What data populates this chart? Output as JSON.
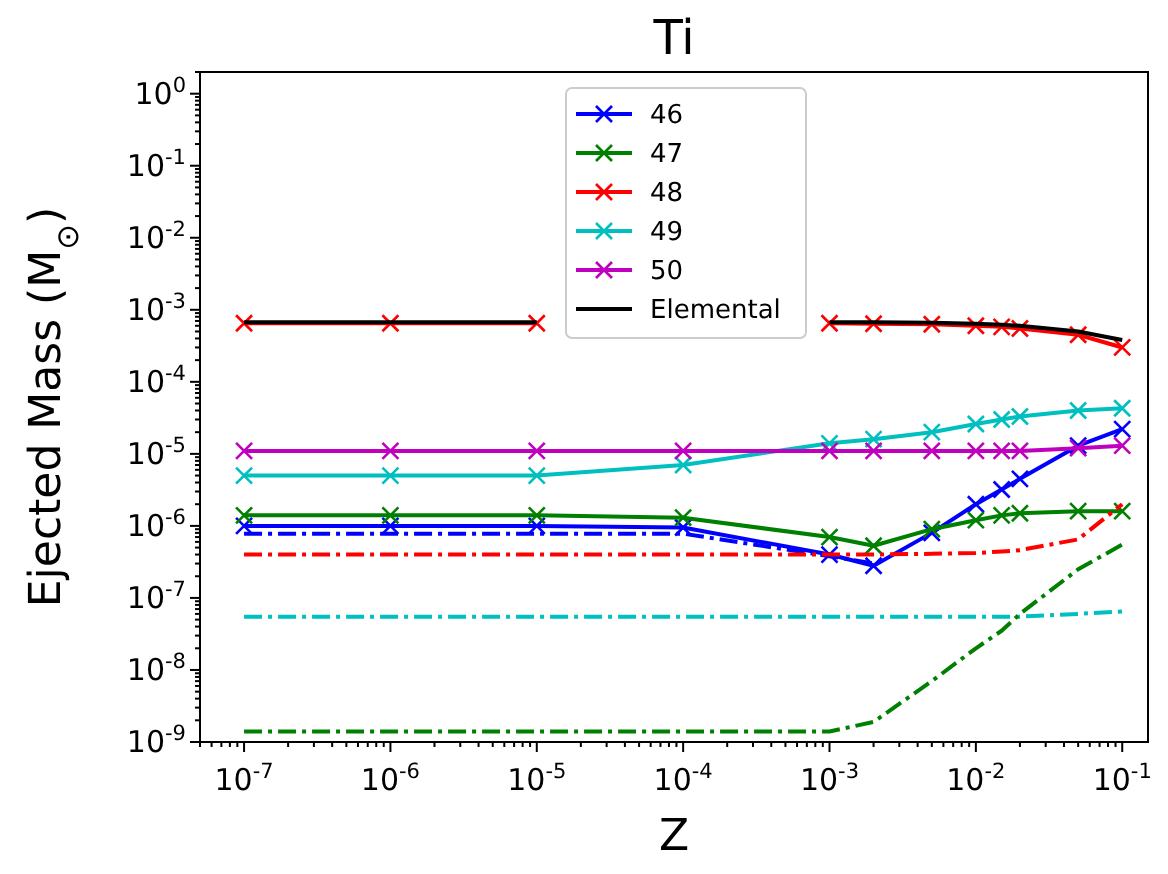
{
  "chart_data": {
    "type": "line",
    "title": "Ti",
    "xlabel": "Z",
    "ylabel": "Ejected Mass (M$_{⊙}$)",
    "log": "xy",
    "grid": false,
    "legend": "top",
    "marker": "cross",
    "x": [
      1e-07,
      1e-06,
      1e-05,
      0.0001,
      0.001,
      0.002,
      0.005,
      0.01,
      0.015,
      0.02,
      0.05,
      0.1
    ],
    "xlim": [
      5e-08,
      0.15
    ],
    "ylim": [
      1e-09,
      2
    ],
    "xticks": [
      {
        "value": 1e-07,
        "label": "10$^{-7}$"
      },
      {
        "value": 1e-06,
        "label": "10$^{-6}$"
      },
      {
        "value": 1e-05,
        "label": "10$^{-5}$"
      },
      {
        "value": 0.0001,
        "label": "10$^{-4}$"
      },
      {
        "value": 0.001,
        "label": "10$^{-3}$"
      },
      {
        "value": 0.01,
        "label": "10$^{-2}$"
      },
      {
        "value": 0.1,
        "label": "10$^{-1}$"
      }
    ],
    "yticks": [
      {
        "value": 1e-09,
        "label": "10$^{-9}$"
      },
      {
        "value": 1e-08,
        "label": "10$^{-8}$"
      },
      {
        "value": 1e-07,
        "label": "10$^{-7}$"
      },
      {
        "value": 1e-06,
        "label": "10$^{-6}$"
      },
      {
        "value": 1e-05,
        "label": "10$^{-5}$"
      },
      {
        "value": 0.0001,
        "label": "10$^{-4}$"
      },
      {
        "value": 0.001,
        "label": "10$^{-3}$"
      },
      {
        "value": 0.01,
        "label": "10$^{-2}$"
      },
      {
        "value": 0.1,
        "label": "10$^{-1}$"
      },
      {
        "value": 1,
        "label": "10$^{0}$"
      }
    ],
    "series": [
      {
        "name": "46",
        "color": "#0000ff",
        "values": [
          1e-06,
          1e-06,
          1e-06,
          9.5e-07,
          4e-07,
          2.8e-07,
          8e-07,
          2e-06,
          3.2e-06,
          4.5e-06,
          1.3e-05,
          2.2e-05
        ]
      },
      {
        "name": "47",
        "color": "#008000",
        "values": [
          1.4e-06,
          1.4e-06,
          1.4e-06,
          1.3e-06,
          7e-07,
          5.3e-07,
          9e-07,
          1.2e-06,
          1.4e-06,
          1.5e-06,
          1.6e-06,
          1.6e-06
        ]
      },
      {
        "name": "48",
        "color": "#ff0000",
        "values": [
          0.00065,
          0.00065,
          0.00065,
          null,
          0.00065,
          0.00064,
          0.00063,
          0.0006,
          0.00058,
          0.00055,
          0.00045,
          0.0003
        ]
      },
      {
        "name": "49",
        "color": "#00bfbf",
        "values": [
          5e-06,
          5e-06,
          5e-06,
          7e-06,
          1.4e-05,
          1.6e-05,
          2e-05,
          2.6e-05,
          3e-05,
          3.3e-05,
          4e-05,
          4.3e-05
        ]
      },
      {
        "name": "50",
        "color": "#bf00bf",
        "values": [
          1.1e-05,
          1.1e-05,
          1.1e-05,
          1.1e-05,
          1.1e-05,
          1.1e-05,
          1.1e-05,
          1.1e-05,
          1.1e-05,
          1.1e-05,
          1.2e-05,
          1.3e-05
        ]
      },
      {
        "name": "Elemental",
        "color": "#000000",
        "marker": "none",
        "values": [
          0.00067,
          0.00067,
          0.00067,
          null,
          0.00067,
          0.00067,
          0.00066,
          0.00064,
          0.00062,
          0.0006,
          0.0005,
          0.00038
        ]
      },
      {
        "color": "#0000ff",
        "marker": "none",
        "line_style": "dashed",
        "values": [
          7.8e-07,
          7.8e-07,
          7.8e-07,
          7.8e-07,
          3.8e-07,
          3e-07,
          null,
          null,
          null,
          null,
          null,
          null
        ]
      },
      {
        "color": "#ff0000",
        "marker": "none",
        "line_style": "dashed",
        "values": [
          4e-07,
          4e-07,
          4e-07,
          4e-07,
          4e-07,
          4e-07,
          4.1e-07,
          4.2e-07,
          4.4e-07,
          4.6e-07,
          6.5e-07,
          2e-06
        ]
      },
      {
        "color": "#00bfbf",
        "marker": "none",
        "line_style": "dashed",
        "values": [
          5.5e-08,
          5.5e-08,
          5.5e-08,
          5.5e-08,
          5.5e-08,
          5.5e-08,
          5.5e-08,
          5.5e-08,
          5.5e-08,
          5.5e-08,
          6e-08,
          6.5e-08
        ]
      },
      {
        "color": "#008000",
        "marker": "none",
        "line_style": "dashed",
        "values": [
          1.4e-09,
          1.4e-09,
          1.4e-09,
          1.4e-09,
          1.4e-09,
          1.9e-09,
          7e-09,
          2e-08,
          3.5e-08,
          6e-08,
          2.5e-07,
          5.5e-07
        ]
      }
    ]
  }
}
